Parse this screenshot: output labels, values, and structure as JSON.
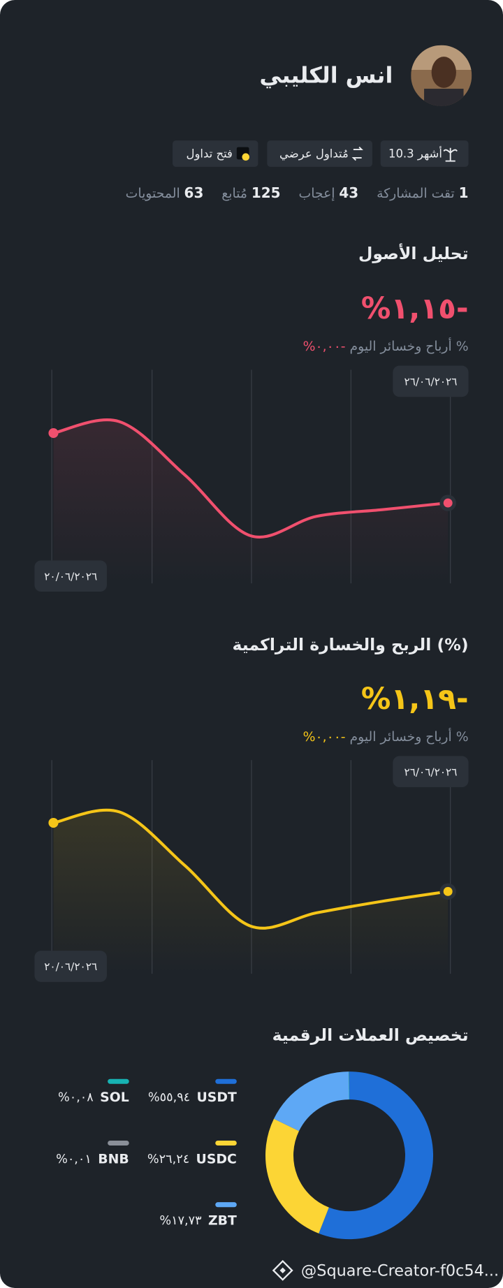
{
  "profile": {
    "name": "انس الكليبي",
    "tags": [
      "10.3 أشهر",
      "مُتداول عرضي",
      "فتح تداول"
    ],
    "stats": [
      {
        "value": 1,
        "label": "تقت المشاركة"
      },
      {
        "value": 43,
        "label": "إعجاب"
      },
      {
        "value": 125,
        "label": "مُتابع"
      },
      {
        "value": 63,
        "label": "المحتويات"
      }
    ]
  },
  "asset_analysis": {
    "title": "تحليل الأصول",
    "change": "%١,١٥-",
    "today_label": "أرباح وخسائر اليوم %",
    "today_value": "%٠,٠٠-",
    "start_date": "٢٠/٠٦/٢٠٢٦",
    "end_date": "٢٦/٠٦/٢٠٢٦",
    "color": "#f0506e",
    "values": [
      0,
      0.19,
      -0.69,
      -1.69,
      -1.37,
      -1.26,
      -1.15
    ]
  },
  "cumulative_pnl": {
    "title": "الربح والخسارة التراكمية (%)",
    "change": "%١,١٩-",
    "today_label": "أرباح وخسائر اليوم %",
    "today_value": "%٠,٠٠-",
    "start_date": "٢٠/٠٦/٢٠٢٦",
    "end_date": "٢٦/٠٦/٢٠٢٦",
    "color": "#f5c518",
    "values": [
      0,
      0.19,
      -0.74,
      -1.79,
      -1.56,
      -1.36,
      -1.19
    ]
  },
  "allocation": {
    "title": "تخصيص العملات الرقمية",
    "items": [
      {
        "name": "USDT",
        "value": 55.94,
        "label": "%٥٥,٩٤",
        "color": "#1f6fd8"
      },
      {
        "name": "USDC",
        "value": 26.24,
        "label": "%٢٦,٢٤",
        "color": "#fcd535"
      },
      {
        "name": "ZBT",
        "value": 17.73,
        "label": "%١٧,٧٣",
        "color": "#5ea8f5"
      },
      {
        "name": "SOL",
        "value": 0.08,
        "label": "%٠,٠٨",
        "color": "#17b3b3"
      },
      {
        "name": "BNB",
        "value": 0.01,
        "label": "%٠,٠١",
        "color": "#8a8f98"
      }
    ]
  },
  "footer": {
    "handle": "@Square-Creator-f0c54..."
  }
}
